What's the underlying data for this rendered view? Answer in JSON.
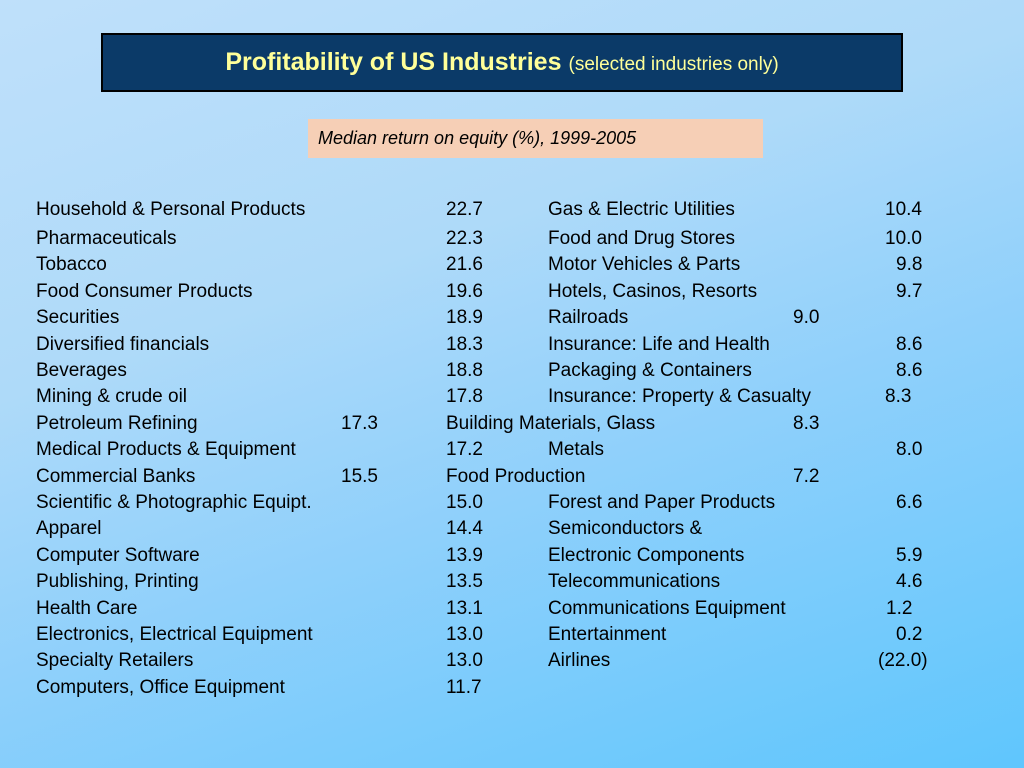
{
  "title": {
    "main": "Profitability of US Industries",
    "sub": "(selected industries only)"
  },
  "subtitle": "Median return on equity (%), 1999-2005",
  "left_rows": [
    {
      "industry": "Household & Personal Products",
      "value": "22.7"
    },
    {
      "industry": "Pharmaceuticals",
      "value": "22.3"
    },
    {
      "industry": "Tobacco",
      "value": "21.6"
    },
    {
      "industry": "Food Consumer Products",
      "value": "19.6"
    },
    {
      "industry": "Securities",
      "value": "18.9"
    },
    {
      "industry": "Diversified financials",
      "value": "18.3"
    },
    {
      "industry": "Beverages",
      "value": "18.8"
    },
    {
      "industry": "Mining & crude oil",
      "value": "17.8"
    },
    {
      "industry": "Petroleum Refining",
      "value": "17.3"
    },
    {
      "industry": "Medical Products & Equipment",
      "value": "17.2"
    },
    {
      "industry": "Commercial Banks",
      "value": "15.5"
    },
    {
      "industry": "Scientific & Photographic Equipt.",
      "value": "15.0"
    },
    {
      "industry": "Apparel",
      "value": "14.4"
    },
    {
      "industry": "Computer Software",
      "value": "13.9"
    },
    {
      "industry": "Publishing, Printing",
      "value": "13.5"
    },
    {
      "industry": "Health Care",
      "value": "13.1"
    },
    {
      "industry": "Electronics, Electrical Equipment",
      "value": "13.0"
    },
    {
      "industry": "Specialty Retailers",
      "value": "13.0"
    },
    {
      "industry": "Computers, Office Equipment",
      "value": "11.7"
    }
  ],
  "right_rows": [
    {
      "industry": "Gas & Electric Utilities",
      "value": "10.4"
    },
    {
      "industry": "Food and Drug Stores",
      "value": "10.0"
    },
    {
      "industry": "Motor Vehicles & Parts",
      "value": "9.8"
    },
    {
      "industry": "Hotels, Casinos, Resorts",
      "value": "9.7"
    },
    {
      "industry": "Railroads",
      "value": "9.0"
    },
    {
      "industry": "Insurance: Life and Health",
      "value": "8.6"
    },
    {
      "industry": "Packaging & Containers",
      "value": "8.6"
    },
    {
      "industry": "Insurance: Property & Casualty",
      "value": "8.3"
    },
    {
      "industry": "Building Materials, Glass",
      "value": "8.3"
    },
    {
      "industry": "Metals",
      "value": "8.0"
    },
    {
      "industry": "Food Production",
      "value": "7.2"
    },
    {
      "industry": "Forest and Paper Products",
      "value": "6.6"
    },
    {
      "industry": "Semiconductors &",
      "value": ""
    },
    {
      "industry": "Electronic Components",
      "value": "5.9"
    },
    {
      "industry": "Telecommunications",
      "value": "4.6"
    },
    {
      "industry": "Communications Equipment",
      "value": "1.2"
    },
    {
      "industry": "Entertainment",
      "value": "0.2"
    },
    {
      "industry": "Airlines",
      "value": "(22.0)"
    }
  ]
}
